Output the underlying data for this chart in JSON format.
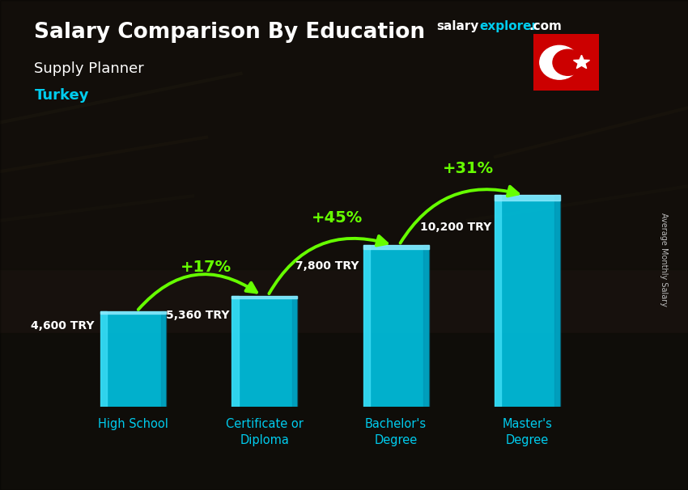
{
  "title_main": "Salary Comparison By Education",
  "subtitle": "Supply Planner",
  "country": "Turkey",
  "categories": [
    "High School",
    "Certificate or\nDiploma",
    "Bachelor's\nDegree",
    "Master's\nDegree"
  ],
  "values": [
    4600,
    5360,
    7800,
    10200
  ],
  "value_labels": [
    "4,600 TRY",
    "5,360 TRY",
    "7,800 TRY",
    "10,200 TRY"
  ],
  "pct_labels": [
    "+17%",
    "+45%",
    "+31%"
  ],
  "bar_color_main": "#00c8e8",
  "bar_color_light": "#40e0f8",
  "bar_color_dark": "#0090b0",
  "bar_color_top": "#20d8f0",
  "bg_overlay": "#00000088",
  "text_color_white": "#ffffff",
  "text_color_cyan": "#00ccee",
  "text_color_green": "#66ff00",
  "ylabel": "Average Monthly Salary",
  "ylim": [
    0,
    13000
  ],
  "bar_width": 0.5,
  "website_salary": "salary",
  "website_explorer": "explorer",
  "website_com": ".com",
  "flag_red": "#cc0000",
  "arrow_configs": [
    {
      "from_bar": 0,
      "to_bar": 1,
      "pct": "+17%",
      "rad": -0.45
    },
    {
      "from_bar": 1,
      "to_bar": 2,
      "pct": "+45%",
      "rad": -0.4
    },
    {
      "from_bar": 2,
      "to_bar": 3,
      "pct": "+31%",
      "rad": -0.38
    }
  ],
  "value_label_xoffset": [
    -0.32,
    -0.32,
    -0.32,
    -0.28
  ],
  "value_label_yoffset": [
    0.92,
    0.88,
    0.9,
    0.88
  ]
}
